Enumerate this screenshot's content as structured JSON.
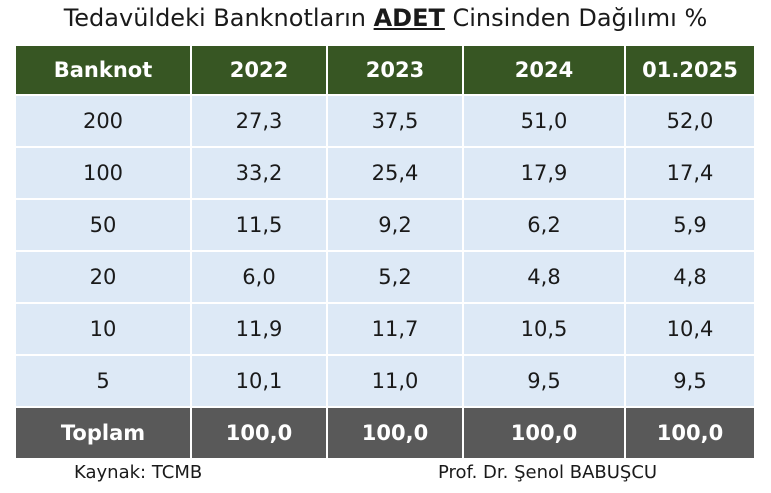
{
  "title": {
    "prefix": "Tedavüldeki Banknotların ",
    "emphasis": "ADET",
    "suffix": " Cinsinden Dağılımı %"
  },
  "colors": {
    "header_bg": "#375623",
    "row_bg": "#dde9f6",
    "total_bg": "#595959"
  },
  "chart_data": {
    "type": "table",
    "title": "Tedavüldeki Banknotların ADET Cinsinden Dağılımı %",
    "columns": [
      "Banknot",
      "2022",
      "2023",
      "2024",
      "01.2025"
    ],
    "rows": [
      [
        "200",
        "27,3",
        "37,5",
        "51,0",
        "52,0"
      ],
      [
        "100",
        "33,2",
        "25,4",
        "17,9",
        "17,4"
      ],
      [
        "50",
        "11,5",
        "9,2",
        "6,2",
        "5,9"
      ],
      [
        "20",
        "6,0",
        "5,2",
        "4,8",
        "4,8"
      ],
      [
        "10",
        "11,9",
        "11,7",
        "10,5",
        "10,4"
      ],
      [
        "5",
        "10,1",
        "11,0",
        "9,5",
        "9,5"
      ]
    ],
    "total_row": [
      "Toplam",
      "100,0",
      "100,0",
      "100,0",
      "100,0"
    ]
  },
  "footer": {
    "source": "Kaynak: TCMB",
    "author": "Prof. Dr. Şenol BABUŞCU"
  }
}
